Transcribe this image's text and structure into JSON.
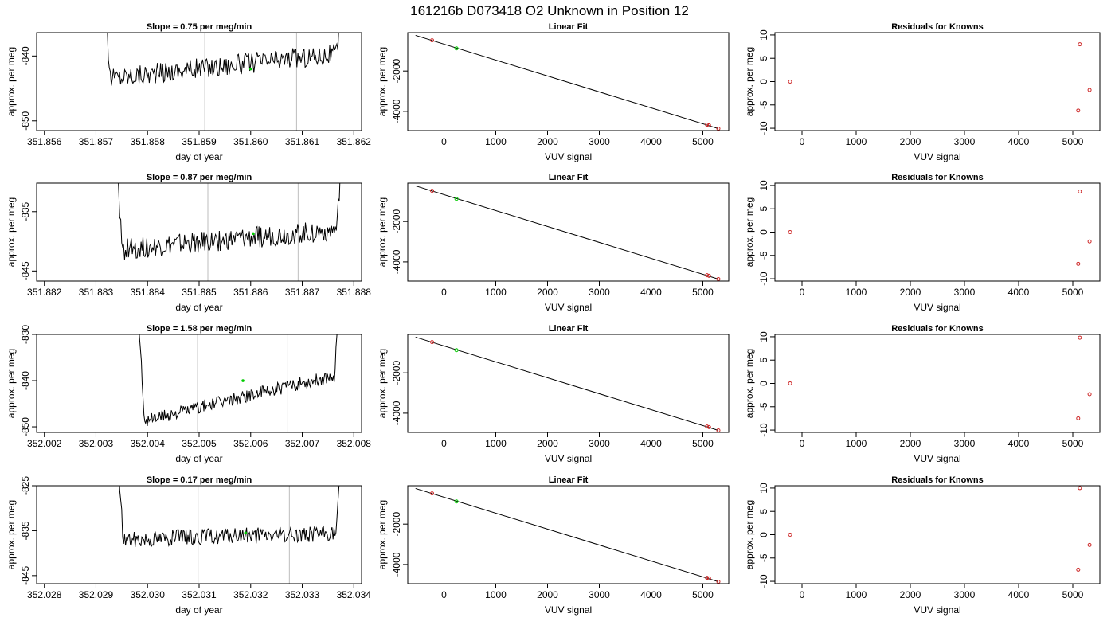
{
  "figure_title": "161216b      D073418    O2 Unknown in Position  12",
  "chart_data": [
    {
      "type": "line",
      "panel": "trace",
      "row": 1,
      "title": "Slope =  0.75  per meg/min",
      "xlabel": "day of year",
      "ylabel": "approx. per meg",
      "xlim": [
        351.85585,
        351.86215
      ],
      "ylim": [
        -851.5,
        -836.4
      ],
      "xticks": [
        351.856,
        351.857,
        351.858,
        351.859,
        351.86,
        351.861,
        351.862
      ],
      "xtick_labels": [
        "351.856",
        "351.857",
        "351.858",
        "351.859",
        "351.860",
        "351.861",
        "351.862"
      ],
      "yticks": [
        -840,
        -850
      ],
      "ytick_labels": [
        "-840",
        "-850"
      ],
      "vlines": [
        351.85911,
        351.86089
      ],
      "trace_x": [
        351.85708,
        351.86185
      ],
      "trace_base": -843.5,
      "trace_end": -839.5,
      "trace_amp": 1.6,
      "green_point": {
        "x": 351.86,
        "y": -842.0
      }
    },
    {
      "type": "line",
      "panel": "fit",
      "row": 1,
      "title": "Linear Fit",
      "xlabel": "VUV signal",
      "ylabel": "approx. per meg",
      "xlim": [
        -700,
        5500
      ],
      "ylim": [
        -4950,
        -100
      ],
      "xticks": [
        0,
        1000,
        2000,
        3000,
        4000,
        5000
      ],
      "xtick_labels": [
        "0",
        "1000",
        "2000",
        "3000",
        "4000",
        "5000"
      ],
      "yticks": [
        -2000,
        -4000
      ],
      "ytick_labels": [
        "-2000",
        "-4000"
      ],
      "fit_line": {
        "x": [
          -550,
          5300
        ],
        "y": [
          -235,
          -4850
        ]
      },
      "known_points": [
        {
          "x": -230,
          "y": -480
        },
        {
          "x": 5080,
          "y": -4660
        },
        {
          "x": 5120,
          "y": -4690
        },
        {
          "x": 5300,
          "y": -4850
        }
      ],
      "unknown_point": {
        "x": 240,
        "y": -880
      }
    },
    {
      "type": "scatter",
      "panel": "residuals",
      "row": 1,
      "title": "Residuals for Knowns",
      "xlabel": "VUV signal",
      "ylabel": "approx. per meg",
      "xlim": [
        -500,
        5500
      ],
      "ylim": [
        -10.5,
        10.5
      ],
      "xticks": [
        0,
        1000,
        2000,
        3000,
        4000,
        5000
      ],
      "xtick_labels": [
        "0",
        "1000",
        "2000",
        "3000",
        "4000",
        "5000"
      ],
      "yticks": [
        10,
        5,
        0,
        -5,
        -10
      ],
      "ytick_labels": [
        "10",
        "5",
        "0",
        "-5",
        "-10"
      ],
      "points": [
        {
          "x": -220,
          "y": 0.0
        },
        {
          "x": 5130,
          "y": 8.0
        },
        {
          "x": 5100,
          "y": -6.2
        },
        {
          "x": 5310,
          "y": -1.8
        }
      ]
    },
    {
      "type": "line",
      "panel": "trace",
      "row": 2,
      "title": "Slope =  0.87  per meg/min",
      "xlabel": "day of year",
      "ylabel": "approx. per meg",
      "xlim": [
        351.88185,
        351.88815
      ],
      "ylim": [
        -846.7,
        -830.2
      ],
      "xticks": [
        351.882,
        351.883,
        351.884,
        351.885,
        351.886,
        351.887,
        351.888
      ],
      "xtick_labels": [
        "351.882",
        "351.883",
        "351.884",
        "351.885",
        "351.886",
        "351.887",
        "351.888"
      ],
      "yticks": [
        -835,
        -845
      ],
      "ytick_labels": [
        "-835",
        "-845"
      ],
      "vlines": [
        351.88517,
        351.88692
      ],
      "trace_x": [
        351.88333,
        351.88783
      ],
      "trace_base": -841.5,
      "trace_end": -838.0,
      "trace_amp": 1.8,
      "green_point": {
        "x": 351.88605,
        "y": -838.7
      }
    },
    {
      "type": "line",
      "panel": "fit",
      "row": 2,
      "title": "Linear Fit",
      "xlabel": "VUV signal",
      "ylabel": "approx. per meg",
      "xlim": [
        -700,
        5500
      ],
      "ylim": [
        -4950,
        -100
      ],
      "xticks": [
        0,
        1000,
        2000,
        3000,
        4000,
        5000
      ],
      "xtick_labels": [
        "0",
        "1000",
        "2000",
        "3000",
        "4000",
        "5000"
      ],
      "yticks": [
        -2000,
        -4000
      ],
      "ytick_labels": [
        "-2000",
        "-4000"
      ],
      "fit_line": {
        "x": [
          -550,
          5300
        ],
        "y": [
          -235,
          -4850
        ]
      },
      "known_points": [
        {
          "x": -230,
          "y": -480
        },
        {
          "x": 5080,
          "y": -4660
        },
        {
          "x": 5120,
          "y": -4690
        },
        {
          "x": 5300,
          "y": -4850
        }
      ],
      "unknown_point": {
        "x": 240,
        "y": -880
      }
    },
    {
      "type": "scatter",
      "panel": "residuals",
      "row": 2,
      "title": "Residuals for Knowns",
      "xlabel": "VUV signal",
      "ylabel": "approx. per meg",
      "xlim": [
        -500,
        5500
      ],
      "ylim": [
        -10.5,
        10.5
      ],
      "xticks": [
        0,
        1000,
        2000,
        3000,
        4000,
        5000
      ],
      "xtick_labels": [
        "0",
        "1000",
        "2000",
        "3000",
        "4000",
        "5000"
      ],
      "yticks": [
        10,
        5,
        0,
        -5,
        -10
      ],
      "ytick_labels": [
        "10",
        "5",
        "0",
        "-5",
        "-10"
      ],
      "points": [
        {
          "x": -220,
          "y": 0.0
        },
        {
          "x": 5130,
          "y": 8.7
        },
        {
          "x": 5100,
          "y": -6.8
        },
        {
          "x": 5310,
          "y": -2.0
        }
      ]
    },
    {
      "type": "line",
      "panel": "trace",
      "row": 3,
      "title": "Slope =  1.58  per meg/min",
      "xlabel": "day of year",
      "ylabel": "approx. per meg",
      "xlim": [
        352.00185,
        352.00815
      ],
      "ylim": [
        -851.2,
        -830.0
      ],
      "xticks": [
        352.002,
        352.003,
        352.004,
        352.005,
        352.006,
        352.007,
        352.008
      ],
      "xtick_labels": [
        "352.002",
        "352.003",
        "352.004",
        "352.005",
        "352.006",
        "352.007",
        "352.008"
      ],
      "yticks": [
        -830,
        -840,
        -850
      ],
      "ytick_labels": [
        "-830",
        "-840",
        "-850"
      ],
      "vlines": [
        352.00497,
        352.00672
      ],
      "trace_x": [
        352.00378,
        352.00777
      ],
      "trace_base": -849.0,
      "trace_end": -838.5,
      "trace_amp": 1.4,
      "green_point": {
        "x": 352.00585,
        "y": -840.0
      }
    },
    {
      "type": "line",
      "panel": "fit",
      "row": 3,
      "title": "Linear Fit",
      "xlabel": "VUV signal",
      "ylabel": "approx. per meg",
      "xlim": [
        -700,
        5500
      ],
      "ylim": [
        -4950,
        -100
      ],
      "xticks": [
        0,
        1000,
        2000,
        3000,
        4000,
        5000
      ],
      "xtick_labels": [
        "0",
        "1000",
        "2000",
        "3000",
        "4000",
        "5000"
      ],
      "yticks": [
        -2000,
        -4000
      ],
      "ytick_labels": [
        "-2000",
        "-4000"
      ],
      "fit_line": {
        "x": [
          -550,
          5300
        ],
        "y": [
          -235,
          -4850
        ]
      },
      "known_points": [
        {
          "x": -230,
          "y": -480
        },
        {
          "x": 5080,
          "y": -4660
        },
        {
          "x": 5120,
          "y": -4690
        },
        {
          "x": 5300,
          "y": -4850
        }
      ],
      "unknown_point": {
        "x": 240,
        "y": -880
      }
    },
    {
      "type": "scatter",
      "panel": "residuals",
      "row": 3,
      "title": "Residuals for Knowns",
      "xlabel": "VUV signal",
      "ylabel": "approx. per meg",
      "xlim": [
        -500,
        5500
      ],
      "ylim": [
        -10.5,
        10.5
      ],
      "xticks": [
        0,
        1000,
        2000,
        3000,
        4000,
        5000
      ],
      "xtick_labels": [
        "0",
        "1000",
        "2000",
        "3000",
        "4000",
        "5000"
      ],
      "yticks": [
        10,
        5,
        0,
        -5,
        -10
      ],
      "ytick_labels": [
        "10",
        "5",
        "0",
        "-5",
        "-10"
      ],
      "points": [
        {
          "x": -220,
          "y": 0.0
        },
        {
          "x": 5130,
          "y": 9.8
        },
        {
          "x": 5100,
          "y": -7.5
        },
        {
          "x": 5310,
          "y": -2.3
        }
      ]
    },
    {
      "type": "line",
      "panel": "trace",
      "row": 4,
      "title": "Slope =  0.17  per meg/min",
      "xlabel": "day of year",
      "ylabel": "approx. per meg",
      "xlim": [
        352.02785,
        352.03415
      ],
      "ylim": [
        -846.8,
        -825.0
      ],
      "xticks": [
        352.028,
        352.029,
        352.03,
        352.031,
        352.032,
        352.033,
        352.034
      ],
      "xtick_labels": [
        "352.028",
        "352.029",
        "352.030",
        "352.031",
        "352.032",
        "352.033",
        "352.034"
      ],
      "yticks": [
        -825,
        -835,
        -845
      ],
      "ytick_labels": [
        "-825",
        "-835",
        "-845"
      ],
      "vlines": [
        352.03098,
        352.03275
      ],
      "trace_x": [
        352.02935,
        352.03382
      ],
      "trace_base": -837.0,
      "trace_end": -835.5,
      "trace_amp": 1.8,
      "green_point": {
        "x": 352.0319,
        "y": -835.5
      }
    },
    {
      "type": "line",
      "panel": "fit",
      "row": 4,
      "title": "Linear Fit",
      "xlabel": "VUV signal",
      "ylabel": "approx. per meg",
      "xlim": [
        -700,
        5500
      ],
      "ylim": [
        -4950,
        -100
      ],
      "xticks": [
        0,
        1000,
        2000,
        3000,
        4000,
        5000
      ],
      "xtick_labels": [
        "0",
        "1000",
        "2000",
        "3000",
        "4000",
        "5000"
      ],
      "yticks": [
        -2000,
        -4000
      ],
      "ytick_labels": [
        "-2000",
        "-4000"
      ],
      "fit_line": {
        "x": [
          -550,
          5300
        ],
        "y": [
          -235,
          -4850
        ]
      },
      "known_points": [
        {
          "x": -230,
          "y": -480
        },
        {
          "x": 5080,
          "y": -4660
        },
        {
          "x": 5120,
          "y": -4690
        },
        {
          "x": 5300,
          "y": -4850
        }
      ],
      "unknown_point": {
        "x": 240,
        "y": -880
      }
    },
    {
      "type": "scatter",
      "panel": "residuals",
      "row": 4,
      "title": "Residuals for Knowns",
      "xlabel": "VUV signal",
      "ylabel": "approx. per meg",
      "xlim": [
        -500,
        5500
      ],
      "ylim": [
        -10.5,
        10.5
      ],
      "xticks": [
        0,
        1000,
        2000,
        3000,
        4000,
        5000
      ],
      "xtick_labels": [
        "0",
        "1000",
        "2000",
        "3000",
        "4000",
        "5000"
      ],
      "yticks": [
        10,
        5,
        0,
        -5,
        -10
      ],
      "ytick_labels": [
        "10",
        "5",
        "0",
        "-5",
        "-10"
      ],
      "points": [
        {
          "x": -220,
          "y": 0.0
        },
        {
          "x": 5130,
          "y": 10.0
        },
        {
          "x": 5100,
          "y": -7.5
        },
        {
          "x": 5310,
          "y": -2.2
        }
      ]
    }
  ],
  "colors": {
    "trace": "#000000",
    "vline": "#bebebe",
    "known": "#cd2626",
    "unknown": "#00cc00",
    "axis": "#000000"
  }
}
